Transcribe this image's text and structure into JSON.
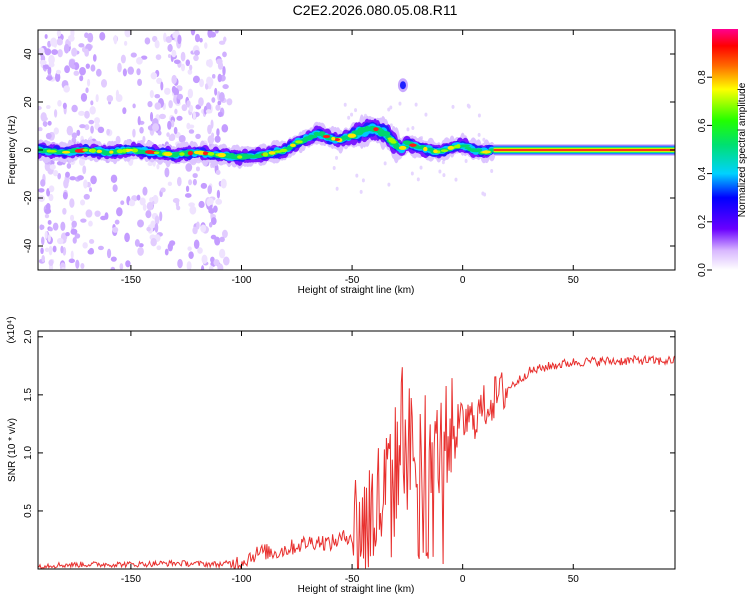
{
  "title": "C2E2.2026.080.05.08.R11",
  "chart_data": [
    {
      "type": "heatmap",
      "xlabel": "Height of straight line (km)",
      "ylabel": "Frequency (Hz)",
      "xlim": [
        -192,
        96
      ],
      "ylim": [
        -50,
        50
      ],
      "xticks": [
        -150,
        -100,
        -50,
        0,
        50
      ],
      "xtick_labels": [
        "-150",
        "-100",
        "-50",
        "0",
        "50"
      ],
      "yticks": [
        -40,
        -20,
        0,
        20,
        40
      ],
      "ytick_labels": [
        "-40",
        "-20",
        "0",
        "20",
        "40"
      ],
      "colorbar": {
        "label": "Normalized spectral amplitude",
        "range": [
          0,
          1
        ],
        "ticks": [
          0.0,
          0.2,
          0.4,
          0.6,
          0.8
        ],
        "tick_labels": [
          "0.0",
          "0.2",
          "0.4",
          "0.6",
          "0.8"
        ]
      },
      "ridge": {
        "x": [
          -192,
          -180,
          -170,
          -160,
          -150,
          -140,
          -130,
          -120,
          -110,
          -100,
          -90,
          -80,
          -75,
          -70,
          -65,
          -60,
          -55,
          -50,
          -45,
          -40,
          -35,
          -30,
          -28,
          -25,
          -20,
          -15,
          -10,
          -5,
          0,
          5,
          10,
          14
        ],
        "y": [
          0,
          -1,
          0,
          -1,
          0,
          -1,
          -2,
          -1,
          -2,
          -3,
          -2,
          0,
          3,
          5,
          7,
          5,
          4,
          6,
          8,
          9,
          7,
          2,
          0,
          3,
          1,
          0,
          -1,
          1,
          2,
          0,
          -1,
          0
        ]
      },
      "steady_line": {
        "x": [
          14,
          96
        ],
        "y": 0
      },
      "blob": {
        "x": -27,
        "y": 27
      }
    },
    {
      "type": "line",
      "xlabel": "Height of straight line (km)",
      "ylabel": "SNR (10 * v/v)",
      "scale_label": "(x10⁴)",
      "xlim": [
        -192,
        96
      ],
      "ylim": [
        0,
        2.05
      ],
      "xticks": [
        -150,
        -100,
        -50,
        0,
        50
      ],
      "xtick_labels": [
        "-150",
        "-100",
        "-50",
        "0",
        "50"
      ],
      "yticks": [
        0.5,
        1.0,
        1.5,
        2.0
      ],
      "ytick_labels": [
        "0.5",
        "1.0",
        "1.5",
        "2.0"
      ],
      "series": [
        {
          "color": "#e8302e",
          "x": [
            -192,
            -170,
            -150,
            -130,
            -110,
            -100,
            -95,
            -90,
            -85,
            -80,
            -75,
            -70,
            -65,
            -60,
            -55,
            -50,
            -45,
            -40,
            -35,
            -30,
            -27,
            -25,
            -22,
            -18,
            -15,
            -12,
            -10,
            -8,
            -5,
            0,
            5,
            10,
            15,
            20,
            25,
            30,
            40,
            50,
            60,
            70,
            80,
            90,
            96
          ],
          "y": [
            0.03,
            0.04,
            0.04,
            0.05,
            0.04,
            0.06,
            0.12,
            0.15,
            0.14,
            0.17,
            0.2,
            0.23,
            0.24,
            0.22,
            0.26,
            0.3,
            0.38,
            0.5,
            0.65,
            0.85,
            1.3,
            1.0,
            1.05,
            0.95,
            1.1,
            1.0,
            1.05,
            1.15,
            1.2,
            1.25,
            1.3,
            1.4,
            1.48,
            1.55,
            1.62,
            1.7,
            1.75,
            1.78,
            1.79,
            1.79,
            1.8,
            1.79,
            1.8
          ]
        }
      ]
    }
  ]
}
